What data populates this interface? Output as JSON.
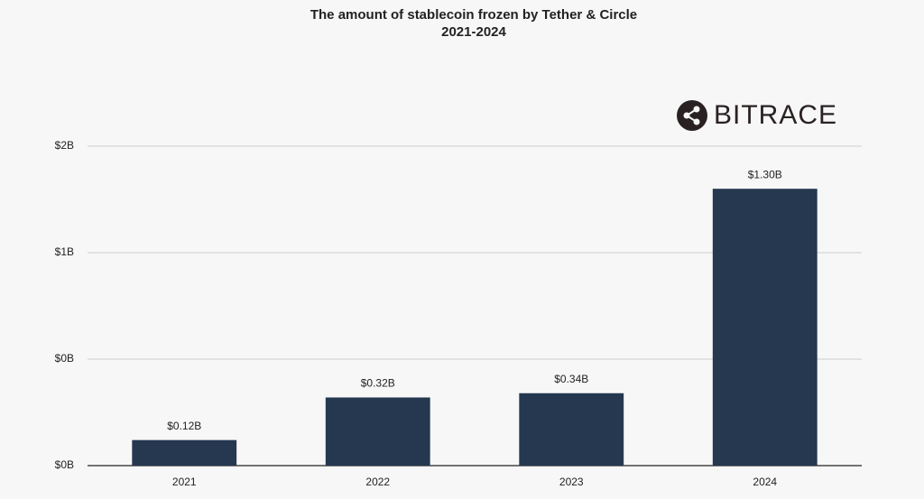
{
  "chart_data": {
    "type": "bar",
    "title": "The amount of stablecoin frozen by Tether & Circle",
    "subtitle": "2021-2024",
    "logo": "BITRACE",
    "categories": [
      "2021",
      "2022",
      "2023",
      "2024"
    ],
    "values": [
      0.12,
      0.32,
      0.34,
      1.3
    ],
    "value_labels": [
      "$0.12B",
      "$0.32B",
      "$0.34B",
      "$1.30B"
    ],
    "color": "#253850",
    "ylim": [
      0,
      1.5
    ],
    "yticks": [
      {
        "value": 0,
        "label": "$0B"
      },
      {
        "value": 0.5,
        "label": "$0B"
      },
      {
        "value": 1,
        "label": "$1B"
      },
      {
        "value": 1.5,
        "label": "$2B"
      }
    ],
    "grid": true
  }
}
